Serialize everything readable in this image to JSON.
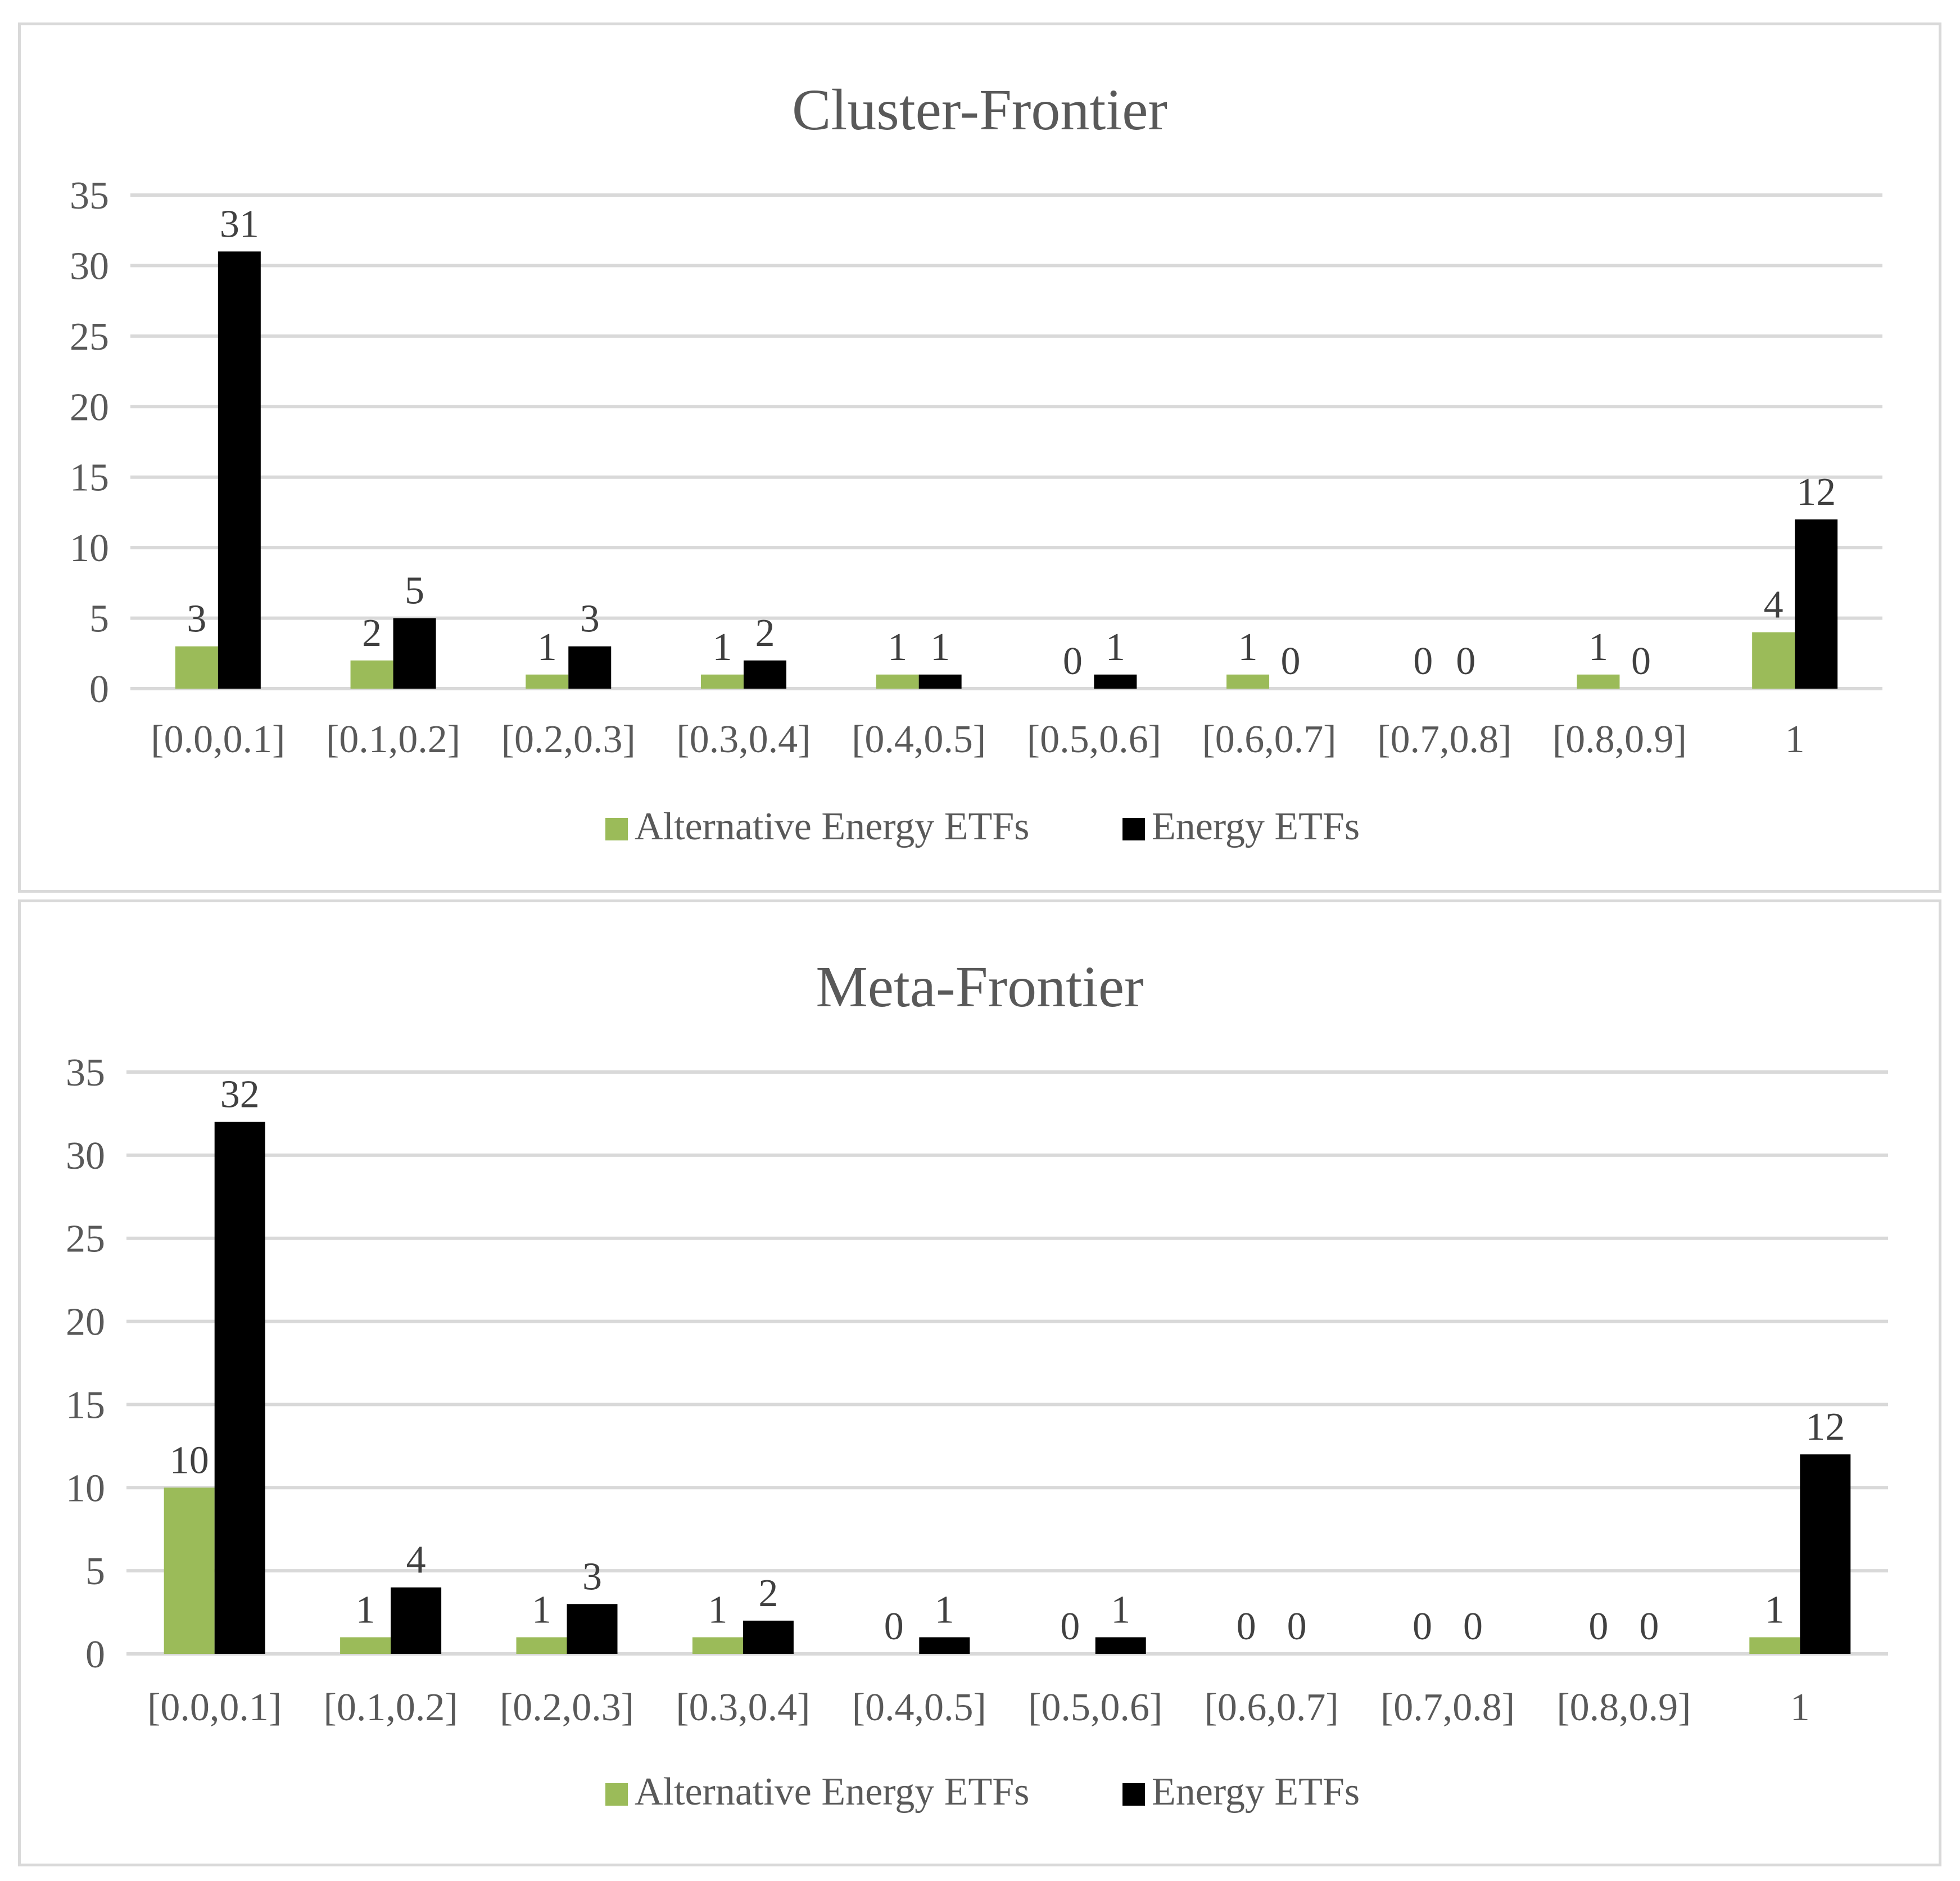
{
  "colors": {
    "alternative": "#9bbb59",
    "energy": "#000000",
    "grid": "#d9d9d9",
    "text": "#595959"
  },
  "chart_data": [
    {
      "type": "bar",
      "title": "Cluster-Frontier",
      "categories": [
        "[0.0,0.1]",
        "[0.1,0.2]",
        "[0.2,0.3]",
        "[0.3,0.4]",
        "[0.4,0.5]",
        "[0.5,0.6]",
        "[0.6,0.7]",
        "[0.7,0.8]",
        "[0.8,0.9]",
        "1"
      ],
      "series": [
        {
          "name": "Alternative Energy ETFs",
          "color": "#9bbb59",
          "values": [
            3,
            2,
            1,
            1,
            1,
            0,
            1,
            0,
            1,
            4
          ]
        },
        {
          "name": "Energy ETFs",
          "color": "#000000",
          "values": [
            31,
            5,
            3,
            2,
            1,
            1,
            0,
            0,
            0,
            12
          ]
        }
      ],
      "ylim": [
        0,
        35
      ],
      "yticks": [
        0,
        5,
        10,
        15,
        20,
        25,
        30,
        35
      ],
      "grid": true,
      "legend": "bottom",
      "xlabel": "",
      "ylabel": ""
    },
    {
      "type": "bar",
      "title": "Meta-Frontier",
      "categories": [
        "[0.0,0.1]",
        "[0.1,0.2]",
        "[0.2,0.3]",
        "[0.3,0.4]",
        "[0.4,0.5]",
        "[0.5,0.6]",
        "[0.6,0.7]",
        "[0.7,0.8]",
        "[0.8,0.9]",
        "1"
      ],
      "series": [
        {
          "name": "Alternative Energy ETFs",
          "color": "#9bbb59",
          "values": [
            10,
            1,
            1,
            1,
            0,
            0,
            0,
            0,
            0,
            1
          ]
        },
        {
          "name": "Energy ETFs",
          "color": "#000000",
          "values": [
            32,
            4,
            3,
            2,
            1,
            1,
            0,
            0,
            0,
            12
          ]
        }
      ],
      "ylim": [
        0,
        35
      ],
      "yticks": [
        0,
        5,
        10,
        15,
        20,
        25,
        30,
        35
      ],
      "grid": true,
      "legend": "bottom",
      "xlabel": "",
      "ylabel": ""
    }
  ]
}
